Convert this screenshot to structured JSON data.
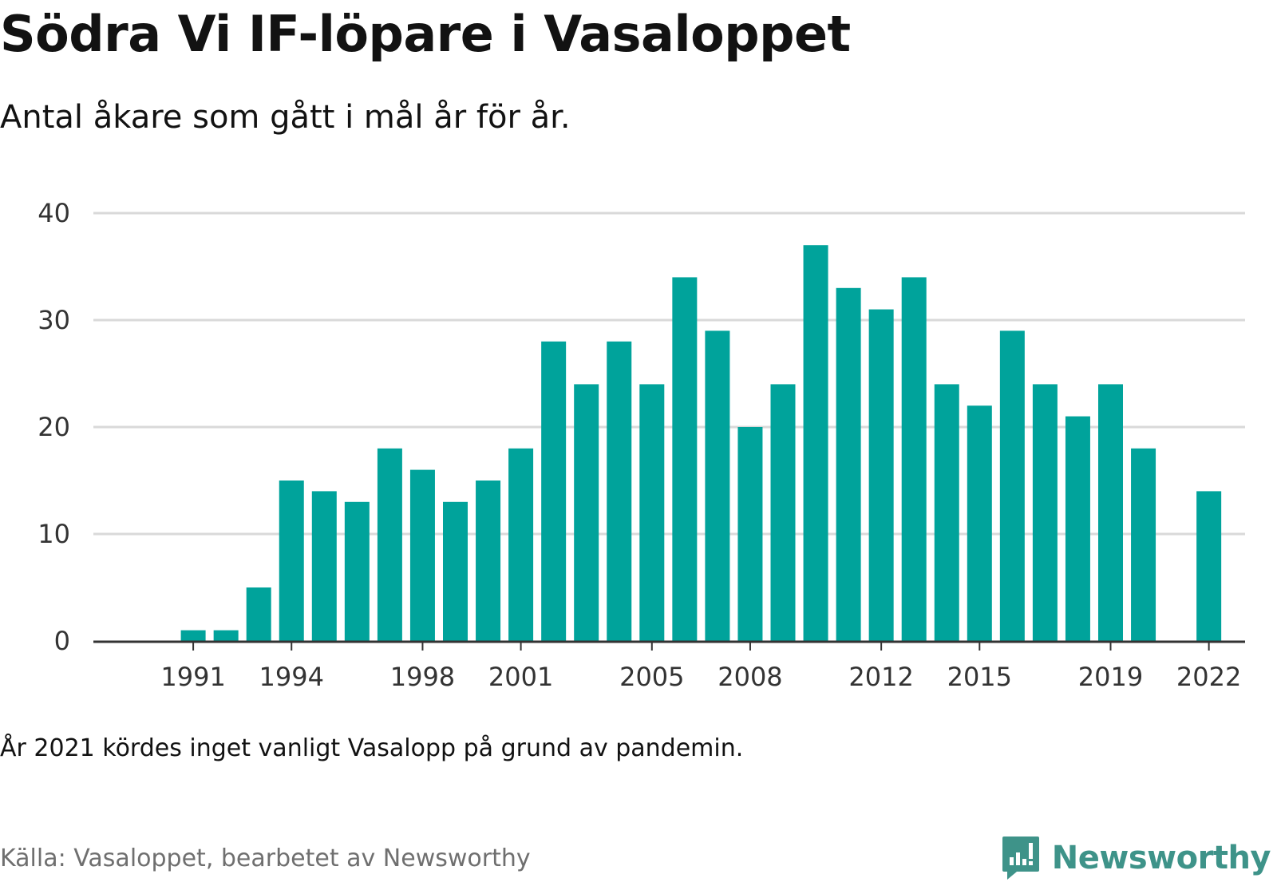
{
  "header": {
    "title": "Södra Vi IF-löpare i Vasaloppet",
    "subtitle": "Antal åkare som gått i mål år för år."
  },
  "footer": {
    "note": "År 2021 kördes inget vanligt Vasalopp på grund av pandemin.",
    "source": "Källa: Vasaloppet, bearbetet av Newsworthy",
    "brand_name": "Newsworthy",
    "brand_icon": "newsworthy-logo-icon"
  },
  "colors": {
    "bar": "#00a39b",
    "grid": "#d9d9d9",
    "axis": "#333333",
    "brand": "#3e9389"
  },
  "chart_data": {
    "type": "bar",
    "categories": [
      1989,
      1990,
      1991,
      1992,
      1993,
      1994,
      1995,
      1996,
      1997,
      1998,
      1999,
      2000,
      2001,
      2002,
      2003,
      2004,
      2005,
      2006,
      2007,
      2008,
      2009,
      2010,
      2011,
      2012,
      2013,
      2014,
      2015,
      2016,
      2017,
      2018,
      2019,
      2020,
      2021,
      2022,
      2023
    ],
    "values": [
      null,
      null,
      1,
      1,
      5,
      15,
      14,
      13,
      18,
      16,
      13,
      15,
      18,
      28,
      24,
      28,
      24,
      34,
      29,
      20,
      24,
      37,
      33,
      31,
      34,
      24,
      22,
      29,
      24,
      21,
      24,
      18,
      null,
      14,
      null
    ],
    "x_tick_labels": [
      "1991",
      "1994",
      "1998",
      "2001",
      "2005",
      "2008",
      "2012",
      "2015",
      "2019",
      "2022"
    ],
    "y_ticks": [
      0,
      10,
      20,
      30,
      40
    ],
    "ylim": [
      0,
      40
    ],
    "grid": true,
    "legend": false
  }
}
